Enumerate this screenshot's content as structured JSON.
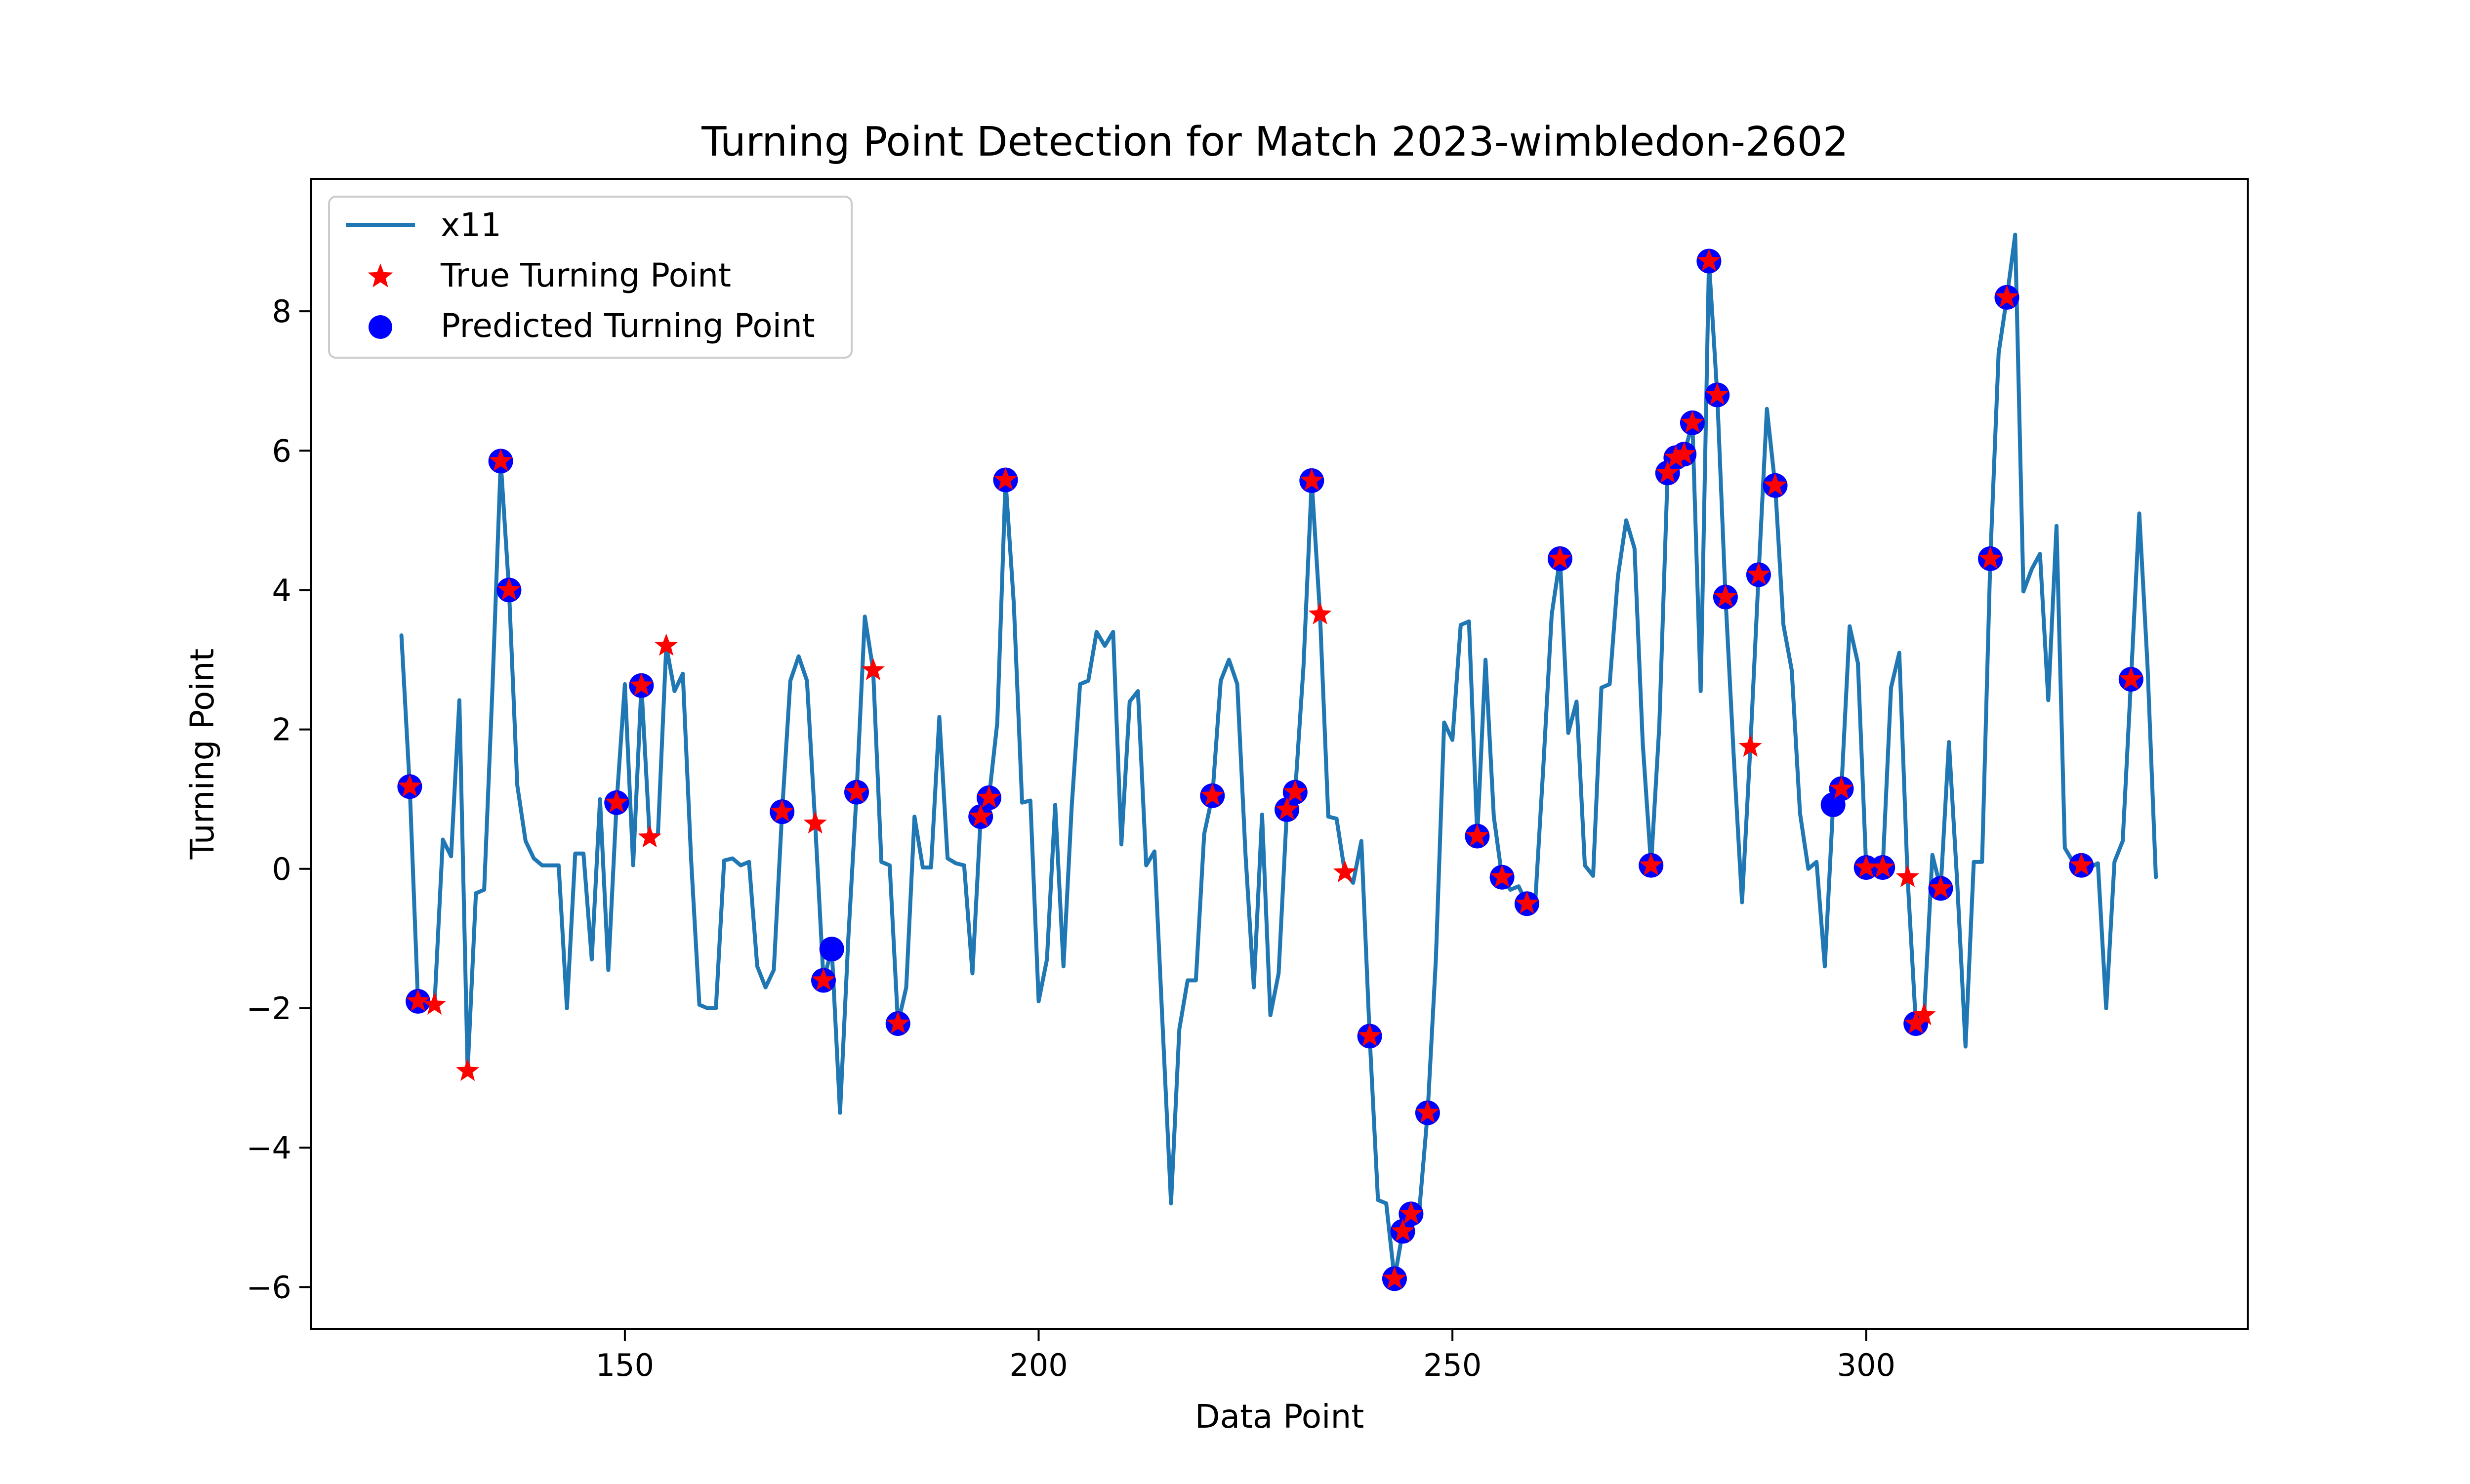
{
  "chart_data": {
    "type": "line",
    "title": "Turning Point Detection for Match 2023-wimbledon-2602",
    "xlabel": "Data Point",
    "ylabel": "Turning Point",
    "xlim": [
      112.1,
      346.1
    ],
    "ylim": [
      -6.6,
      9.9
    ],
    "xticks": [
      150,
      200,
      250,
      300
    ],
    "yticks": [
      -6,
      -4,
      -2,
      0,
      2,
      4,
      6,
      8
    ],
    "grid": false,
    "legend_position": "top-left",
    "series": [
      {
        "name": "x11",
        "kind": "line",
        "color": "#1f77b4",
        "points": [
          [
            123,
            3.35
          ],
          [
            124,
            1.18
          ],
          [
            125,
            -1.9
          ],
          [
            126,
            -1.95
          ],
          [
            127,
            -1.95
          ],
          [
            128,
            0.42
          ],
          [
            129,
            0.18
          ],
          [
            130,
            2.42
          ],
          [
            131,
            -2.9
          ],
          [
            132,
            -0.35
          ],
          [
            133,
            -0.3
          ],
          [
            134,
            2.6
          ],
          [
            135,
            5.85
          ],
          [
            136,
            4.0
          ],
          [
            137,
            1.2
          ],
          [
            138,
            0.4
          ],
          [
            139,
            0.15
          ],
          [
            140,
            0.05
          ],
          [
            141,
            0.05
          ],
          [
            142,
            0.05
          ],
          [
            143,
            -2.0
          ],
          [
            144,
            0.22
          ],
          [
            145,
            0.22
          ],
          [
            146,
            -1.3
          ],
          [
            147,
            1.0
          ],
          [
            148,
            -1.45
          ],
          [
            149,
            0.95
          ],
          [
            150,
            2.65
          ],
          [
            151,
            0.05
          ],
          [
            152,
            2.63
          ],
          [
            153,
            0.45
          ],
          [
            154,
            0.5
          ],
          [
            155,
            3.2
          ],
          [
            156,
            2.55
          ],
          [
            157,
            2.8
          ],
          [
            158,
            0.15
          ],
          [
            159,
            -1.95
          ],
          [
            160,
            -2.0
          ],
          [
            161,
            -2.0
          ],
          [
            162,
            0.12
          ],
          [
            163,
            0.15
          ],
          [
            164,
            0.05
          ],
          [
            165,
            0.1
          ],
          [
            166,
            -1.4
          ],
          [
            167,
            -1.7
          ],
          [
            168,
            -1.45
          ],
          [
            169,
            0.82
          ],
          [
            170,
            2.7
          ],
          [
            171,
            3.05
          ],
          [
            172,
            2.7
          ],
          [
            173,
            0.65
          ],
          [
            174,
            -1.6
          ],
          [
            175,
            -1.15
          ],
          [
            176,
            -3.5
          ],
          [
            177,
            -1.0
          ],
          [
            178,
            1.1
          ],
          [
            179,
            3.62
          ],
          [
            180,
            2.85
          ],
          [
            181,
            0.1
          ],
          [
            182,
            0.05
          ],
          [
            183,
            -2.22
          ],
          [
            184,
            -1.7
          ],
          [
            185,
            0.75
          ],
          [
            186,
            0.02
          ],
          [
            187,
            0.02
          ],
          [
            188,
            2.18
          ],
          [
            189,
            0.15
          ],
          [
            190,
            0.08
          ],
          [
            191,
            0.05
          ],
          [
            192,
            -1.5
          ],
          [
            193,
            0.75
          ],
          [
            194,
            1.02
          ],
          [
            195,
            2.1
          ],
          [
            196,
            5.58
          ],
          [
            197,
            3.8
          ],
          [
            198,
            0.95
          ],
          [
            199,
            0.98
          ],
          [
            200,
            -1.9
          ],
          [
            201,
            -1.3
          ],
          [
            202,
            0.92
          ],
          [
            203,
            -1.4
          ],
          [
            204,
            0.9
          ],
          [
            205,
            2.65
          ],
          [
            206,
            2.7
          ],
          [
            207,
            3.4
          ],
          [
            208,
            3.2
          ],
          [
            209,
            3.4
          ],
          [
            210,
            0.35
          ],
          [
            211,
            2.4
          ],
          [
            212,
            2.55
          ],
          [
            213,
            0.05
          ],
          [
            214,
            0.25
          ],
          [
            215,
            -2.3
          ],
          [
            216,
            -4.8
          ],
          [
            217,
            -2.3
          ],
          [
            218,
            -1.6
          ],
          [
            219,
            -1.6
          ],
          [
            220,
            0.5
          ],
          [
            221,
            1.05
          ],
          [
            222,
            2.7
          ],
          [
            223,
            3.0
          ],
          [
            224,
            2.65
          ],
          [
            225,
            0.2
          ],
          [
            226,
            -1.7
          ],
          [
            227,
            0.78
          ],
          [
            228,
            -2.1
          ],
          [
            229,
            -1.5
          ],
          [
            230,
            0.85
          ],
          [
            231,
            1.1
          ],
          [
            232,
            2.9
          ],
          [
            233,
            5.57
          ],
          [
            234,
            3.65
          ],
          [
            235,
            0.75
          ],
          [
            236,
            0.72
          ],
          [
            237,
            -0.05
          ],
          [
            238,
            -0.2
          ],
          [
            239,
            0.4
          ],
          [
            240,
            -2.4
          ],
          [
            241,
            -4.75
          ],
          [
            242,
            -4.8
          ],
          [
            243,
            -5.88
          ],
          [
            244,
            -5.2
          ],
          [
            245,
            -4.95
          ],
          [
            246,
            -4.9
          ],
          [
            247,
            -3.5
          ],
          [
            248,
            -1.3
          ],
          [
            249,
            2.1
          ],
          [
            250,
            1.85
          ],
          [
            251,
            3.5
          ],
          [
            252,
            3.55
          ],
          [
            253,
            0.47
          ],
          [
            254,
            3.0
          ],
          [
            255,
            0.75
          ],
          [
            256,
            -0.12
          ],
          [
            257,
            -0.3
          ],
          [
            258,
            -0.25
          ],
          [
            259,
            -0.5
          ],
          [
            260,
            -0.5
          ],
          [
            261,
            1.5
          ],
          [
            262,
            3.65
          ],
          [
            263,
            4.45
          ],
          [
            264,
            1.95
          ],
          [
            265,
            2.4
          ],
          [
            266,
            0.05
          ],
          [
            267,
            -0.1
          ],
          [
            268,
            2.6
          ],
          [
            269,
            2.65
          ],
          [
            270,
            4.2
          ],
          [
            271,
            5.0
          ],
          [
            272,
            4.6
          ],
          [
            273,
            1.8
          ],
          [
            274,
            0.05
          ],
          [
            275,
            2.05
          ],
          [
            276,
            5.68
          ],
          [
            277,
            5.9
          ],
          [
            278,
            5.95
          ],
          [
            279,
            6.4
          ],
          [
            280,
            2.55
          ],
          [
            281,
            8.72
          ],
          [
            282,
            6.8
          ],
          [
            283,
            3.9
          ],
          [
            284,
            1.6
          ],
          [
            285,
            -0.48
          ],
          [
            286,
            1.75
          ],
          [
            287,
            4.22
          ],
          [
            288,
            6.6
          ],
          [
            289,
            5.5
          ],
          [
            290,
            3.5
          ],
          [
            291,
            2.85
          ],
          [
            292,
            0.8
          ],
          [
            293,
            0.0
          ],
          [
            294,
            0.1
          ],
          [
            295,
            -1.4
          ],
          [
            296,
            0.92
          ],
          [
            297,
            1.15
          ],
          [
            298,
            3.48
          ],
          [
            299,
            2.95
          ],
          [
            300,
            0.02
          ],
          [
            301,
            0.02
          ],
          [
            302,
            0.02
          ],
          [
            303,
            2.6
          ],
          [
            304,
            3.1
          ],
          [
            305,
            -0.12
          ],
          [
            306,
            -2.22
          ],
          [
            307,
            -2.1
          ],
          [
            308,
            0.2
          ],
          [
            309,
            -0.28
          ],
          [
            310,
            1.82
          ],
          [
            311,
            -0.2
          ],
          [
            312,
            -2.55
          ],
          [
            313,
            0.1
          ],
          [
            314,
            0.1
          ],
          [
            315,
            4.45
          ],
          [
            316,
            7.4
          ],
          [
            317,
            8.2
          ],
          [
            318,
            9.1
          ],
          [
            319,
            3.98
          ],
          [
            320,
            4.3
          ],
          [
            321,
            4.52
          ],
          [
            322,
            2.42
          ],
          [
            323,
            4.92
          ],
          [
            324,
            0.3
          ],
          [
            325,
            0.1
          ],
          [
            326,
            0.05
          ],
          [
            327,
            0.02
          ],
          [
            328,
            0.08
          ],
          [
            329,
            -2.0
          ],
          [
            330,
            0.1
          ],
          [
            331,
            0.4
          ],
          [
            332,
            2.72
          ],
          [
            333,
            5.1
          ],
          [
            334,
            2.9
          ],
          [
            335,
            -0.12
          ]
        ]
      },
      {
        "name": "True Turning Point",
        "kind": "scatter",
        "marker": "star",
        "color": "#ff0000",
        "points": [
          [
            124,
            1.18
          ],
          [
            125,
            -1.9
          ],
          [
            127,
            -1.95
          ],
          [
            131,
            -2.9
          ],
          [
            135,
            5.85
          ],
          [
            136,
            4.0
          ],
          [
            149,
            0.95
          ],
          [
            152,
            2.63
          ],
          [
            153,
            0.45
          ],
          [
            155,
            3.2
          ],
          [
            169,
            0.82
          ],
          [
            173,
            0.65
          ],
          [
            174,
            -1.6
          ],
          [
            178,
            1.1
          ],
          [
            180,
            2.85
          ],
          [
            183,
            -2.22
          ],
          [
            193,
            0.75
          ],
          [
            194,
            1.02
          ],
          [
            196,
            5.58
          ],
          [
            221,
            1.05
          ],
          [
            230,
            0.85
          ],
          [
            231,
            1.1
          ],
          [
            233,
            5.57
          ],
          [
            234,
            3.65
          ],
          [
            237,
            -0.05
          ],
          [
            240,
            -2.4
          ],
          [
            243,
            -5.88
          ],
          [
            244,
            -5.2
          ],
          [
            245,
            -4.95
          ],
          [
            247,
            -3.5
          ],
          [
            253,
            0.47
          ],
          [
            256,
            -0.12
          ],
          [
            259,
            -0.5
          ],
          [
            263,
            4.45
          ],
          [
            274,
            0.05
          ],
          [
            276,
            5.68
          ],
          [
            277,
            5.9
          ],
          [
            278,
            5.95
          ],
          [
            279,
            6.4
          ],
          [
            281,
            8.72
          ],
          [
            282,
            6.8
          ],
          [
            283,
            3.9
          ],
          [
            286,
            1.75
          ],
          [
            287,
            4.22
          ],
          [
            289,
            5.5
          ],
          [
            297,
            1.15
          ],
          [
            300,
            0.02
          ],
          [
            302,
            0.02
          ],
          [
            305,
            -0.12
          ],
          [
            306,
            -2.22
          ],
          [
            307,
            -2.1
          ],
          [
            309,
            -0.28
          ],
          [
            315,
            4.45
          ],
          [
            317,
            8.2
          ],
          [
            326,
            0.05
          ],
          [
            332,
            2.72
          ]
        ]
      },
      {
        "name": "Predicted Turning Point",
        "kind": "scatter",
        "marker": "circle",
        "color": "#0000ff",
        "points": [
          [
            124,
            1.18
          ],
          [
            125,
            -1.9
          ],
          [
            135,
            5.85
          ],
          [
            136,
            4.0
          ],
          [
            149,
            0.95
          ],
          [
            152,
            2.63
          ],
          [
            169,
            0.82
          ],
          [
            174,
            -1.6
          ],
          [
            175,
            -1.15
          ],
          [
            178,
            1.1
          ],
          [
            183,
            -2.22
          ],
          [
            193,
            0.75
          ],
          [
            194,
            1.02
          ],
          [
            196,
            5.58
          ],
          [
            221,
            1.05
          ],
          [
            230,
            0.85
          ],
          [
            231,
            1.1
          ],
          [
            233,
            5.57
          ],
          [
            240,
            -2.4
          ],
          [
            243,
            -5.88
          ],
          [
            244,
            -5.2
          ],
          [
            245,
            -4.95
          ],
          [
            247,
            -3.5
          ],
          [
            253,
            0.47
          ],
          [
            256,
            -0.12
          ],
          [
            259,
            -0.5
          ],
          [
            263,
            4.45
          ],
          [
            274,
            0.05
          ],
          [
            276,
            5.68
          ],
          [
            277,
            5.9
          ],
          [
            278,
            5.95
          ],
          [
            279,
            6.4
          ],
          [
            281,
            8.72
          ],
          [
            282,
            6.8
          ],
          [
            283,
            3.9
          ],
          [
            287,
            4.22
          ],
          [
            289,
            5.5
          ],
          [
            296,
            0.92
          ],
          [
            297,
            1.15
          ],
          [
            300,
            0.02
          ],
          [
            302,
            0.02
          ],
          [
            306,
            -2.22
          ],
          [
            309,
            -0.28
          ],
          [
            315,
            4.45
          ],
          [
            317,
            8.2
          ],
          [
            326,
            0.05
          ],
          [
            332,
            2.72
          ]
        ]
      }
    ]
  }
}
